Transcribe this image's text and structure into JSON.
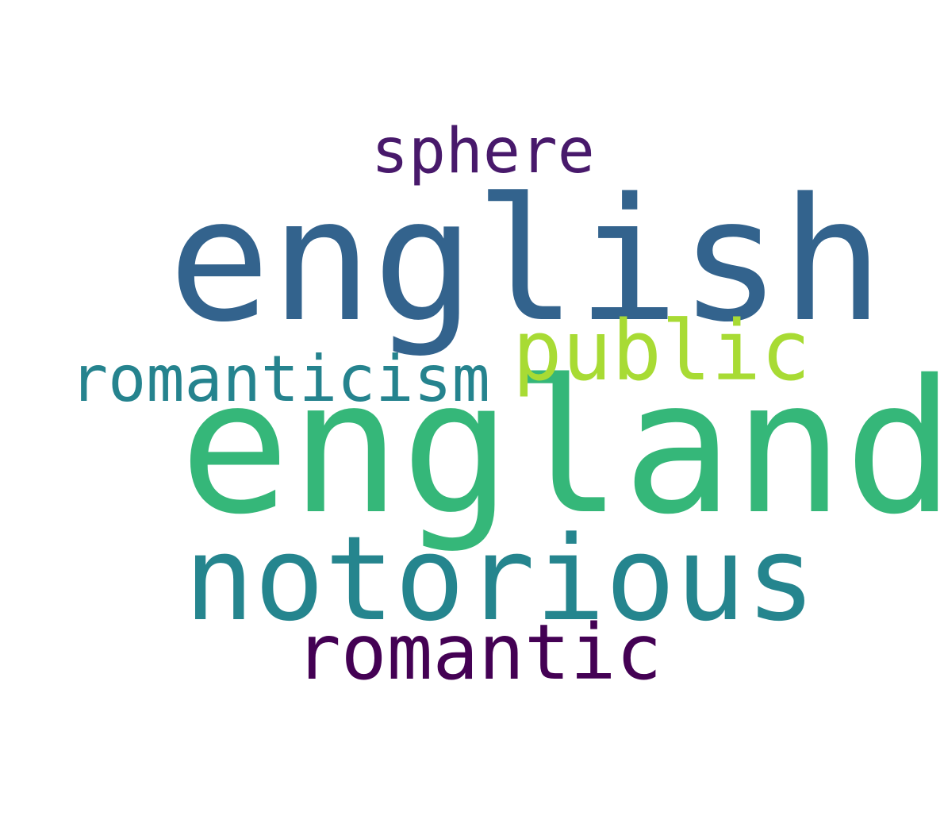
{
  "words": {
    "sphere": {
      "text": "sphere",
      "color": "#48196b"
    },
    "english": {
      "text": "english",
      "color": "#33638d"
    },
    "public": {
      "text": "public",
      "color": "#a8db34"
    },
    "romanticism": {
      "text": "romanticism",
      "color": "#25838e"
    },
    "england": {
      "text": "england",
      "color": "#35b779"
    },
    "notorious": {
      "text": "notorious",
      "color": "#25858e"
    },
    "romantic": {
      "text": "romantic",
      "color": "#440154"
    }
  }
}
